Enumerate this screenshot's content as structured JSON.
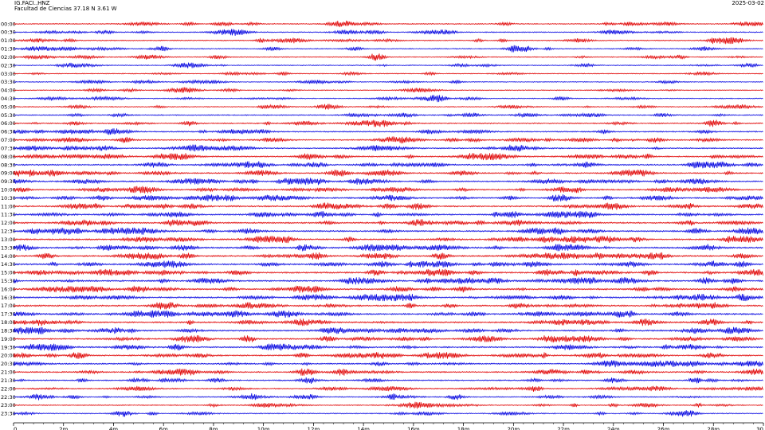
{
  "header": {
    "station": "IG.FACI..HNZ",
    "subtitle": "Facultad de Ciencias  37.18 N 3.61 W",
    "date": "2025-03-02"
  },
  "colors": {
    "even_row": "#e00000",
    "odd_row": "#0000e0",
    "axis": "#000000",
    "background": "#ffffff"
  },
  "chart_data": {
    "type": "line",
    "subtype": "helicorder",
    "title": "IG.FACI..HNZ",
    "xlabel": "",
    "ylabel": "",
    "row_labels": [
      "00:00",
      "00:30",
      "01:00",
      "01:30",
      "02:00",
      "02:30",
      "03:00",
      "03:30",
      "04:00",
      "04:30",
      "05:00",
      "05:30",
      "06:00",
      "06:30",
      "07:00",
      "07:30",
      "08:00",
      "08:30",
      "09:00",
      "09:30",
      "10:00",
      "10:30",
      "11:00",
      "11:30",
      "12:00",
      "12:30",
      "13:00",
      "13:30",
      "14:00",
      "14:30",
      "15:00",
      "15:30",
      "16:00",
      "16:30",
      "17:00",
      "17:30",
      "18:00",
      "18:30",
      "19:00",
      "19:30",
      "20:00",
      "20:30",
      "21:00",
      "21:30",
      "22:00",
      "22:30",
      "23:00",
      "23:30"
    ],
    "x_ticks": [
      "0",
      "2m",
      "4m",
      "6m",
      "8m",
      "10m",
      "12m",
      "14m",
      "16m",
      "18m",
      "20m",
      "22m",
      "24m",
      "26m",
      "28m",
      "30"
    ],
    "xlim": [
      0,
      30
    ],
    "row_colors": [
      "red",
      "blue"
    ],
    "row_activity": [
      0.3,
      0.3,
      0.3,
      0.25,
      0.25,
      0.22,
      0.15,
      0.15,
      0.18,
      0.2,
      0.25,
      0.35,
      0.45,
      0.5,
      0.5,
      0.55,
      0.6,
      0.6,
      0.62,
      0.62,
      0.65,
      0.65,
      0.7,
      0.72,
      0.75,
      0.75,
      0.78,
      0.8,
      0.8,
      0.8,
      0.8,
      0.8,
      0.8,
      0.82,
      0.8,
      0.78,
      0.75,
      0.72,
      0.7,
      0.68,
      0.65,
      0.6,
      0.55,
      0.5,
      0.45,
      0.4,
      0.35,
      0.3
    ]
  }
}
